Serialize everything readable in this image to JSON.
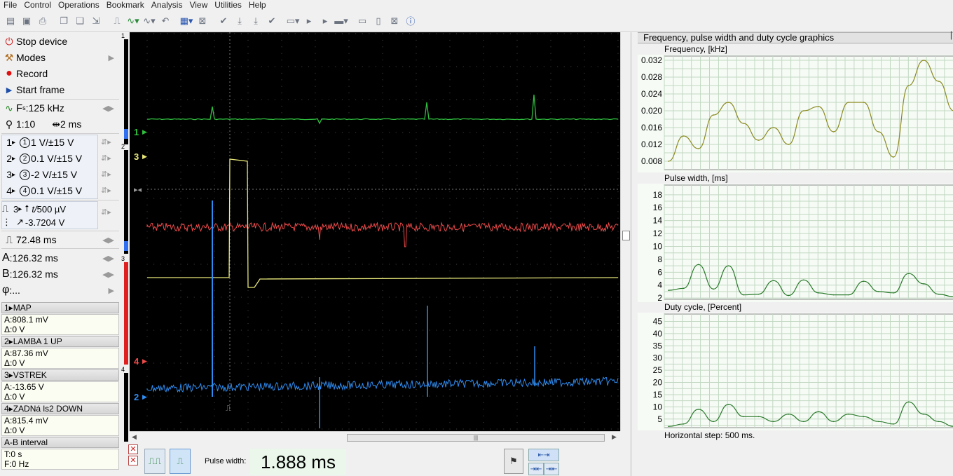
{
  "menu": [
    "File",
    "Control",
    "Operations",
    "Bookmark",
    "Analysis",
    "View",
    "Utilities",
    "Help"
  ],
  "colors": {
    "ch1": "#2fbf3f",
    "ch2": "#2f8cf0",
    "ch3": "#e8e87a",
    "ch4": "#ef4a4a",
    "grid": "#3a3a3a",
    "graph_line": "#8a8a20",
    "graph_line_green": "#2a7a2a",
    "graph_bg": "#f6fbf6",
    "graph_grid": "#c2d8c2"
  },
  "left": {
    "stop_device": "Stop device",
    "modes": "Modes",
    "record": "Record",
    "start_frame": "Start frame",
    "fs_label": "F",
    "fs_sub": "s",
    "fs_value": ":125 kHz",
    "zoom": "1:10",
    "timebase": "2 ms",
    "channels": [
      {
        "num": "1",
        "circ": "1",
        "scale": "1 V/±15 V"
      },
      {
        "num": "2",
        "circ": "2",
        "scale": "0.1 V/±15 V"
      },
      {
        "num": "3",
        "circ": "3",
        "scale": "-2 V/±15 V"
      },
      {
        "num": "4",
        "circ": "4",
        "scale": "0.1 V/±15 V"
      }
    ],
    "trigger_ch": "3",
    "trigger_time": "500 µV",
    "trigger_level": "-3.7204 V",
    "period": "72.48 ms",
    "cursor_a_label": "A",
    "cursor_a": ":126.32 ms",
    "cursor_b_label": "B",
    "cursor_b": ":126.32 ms",
    "phi_label": "φ",
    "phi": ":..."
  },
  "measurements": [
    {
      "header": "1▸MAP",
      "a": "A:808.1 mV",
      "d": "Δ:0 V"
    },
    {
      "header": "2▸LAMBA 1 UP",
      "a": "A:87.36 mV",
      "d": "Δ:0 V"
    },
    {
      "header": "3▸VSTREK",
      "a": "A:-13.65 V",
      "d": "Δ:0 V"
    },
    {
      "header": "4▸ZADNá ls2 DOWN",
      "a": "A:815.4 mV",
      "d": "Δ:0 V"
    },
    {
      "header": "A-B interval",
      "a": "T:0 s",
      "d": "F:0 Hz"
    }
  ],
  "chbar_labels": [
    "1",
    "2",
    "3",
    "4"
  ],
  "scope_markers": [
    "1",
    "3",
    "4",
    "2"
  ],
  "bottom": {
    "pulse_width_label": "Pulse width:",
    "pulse_width_value": "1.888 ms"
  },
  "right": {
    "title": "Frequency, pulse width and duty cycle graphics",
    "graph1_title": "Frequency, [kHz]",
    "graph1_ticks": [
      "0.032",
      "0.028",
      "0.024",
      "0.020",
      "0.016",
      "0.012",
      "0.008"
    ],
    "graph1_values": [
      0.008,
      0.014,
      0.011,
      0.019,
      0.022,
      0.017,
      0.013,
      0.016,
      0.012,
      0.02,
      0.021,
      0.015,
      0.022,
      0.022,
      0.015,
      0.009,
      0.026,
      0.032,
      0.027,
      0.02
    ],
    "graph2_title": "Pulse width, [ms]",
    "graph2_ticks": [
      "18",
      "16",
      "14",
      "12",
      "10",
      "8",
      "6",
      "4",
      "2"
    ],
    "graph2_values": [
      3.2,
      3.5,
      7.2,
      3.4,
      7.0,
      2.5,
      2.6,
      4.7,
      2.4,
      4.8,
      2.8,
      2.5,
      2.5,
      4.6,
      3.0,
      2.8,
      5.8,
      4.2,
      2.6,
      2.2
    ],
    "graph3_title": "Duty cycle, [Percent]",
    "graph3_ticks": [
      "45",
      "40",
      "35",
      "30",
      "25",
      "20",
      "15",
      "10",
      "5"
    ],
    "graph3_values": [
      2,
      3,
      9,
      4,
      11,
      6,
      6,
      4,
      7,
      4,
      8,
      4,
      7,
      6,
      4,
      3,
      12,
      7,
      4,
      2
    ],
    "horizontal_step": "Horizontal step: 500 ms."
  }
}
